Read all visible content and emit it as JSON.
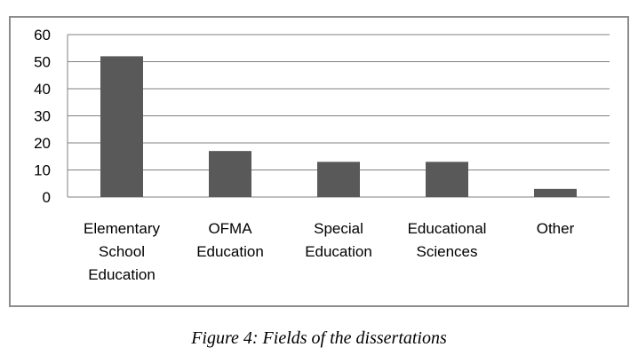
{
  "chart_data": {
    "type": "bar",
    "title": "",
    "xlabel": "",
    "ylabel": "",
    "categories": [
      [
        "Elementary",
        "School",
        "Education"
      ],
      [
        "OFMA",
        "Education"
      ],
      [
        "Special",
        "Education"
      ],
      [
        "Educational",
        "Sciences"
      ],
      [
        "Other"
      ]
    ],
    "values": [
      52,
      17,
      13,
      13,
      3
    ],
    "ylim": [
      0,
      60
    ],
    "yticks": [
      0,
      10,
      20,
      30,
      40,
      50,
      60
    ],
    "grid": true,
    "bar_color": "#595959",
    "grid_color": "#808080"
  },
  "caption": "Figure 4: Fields of the dissertations"
}
